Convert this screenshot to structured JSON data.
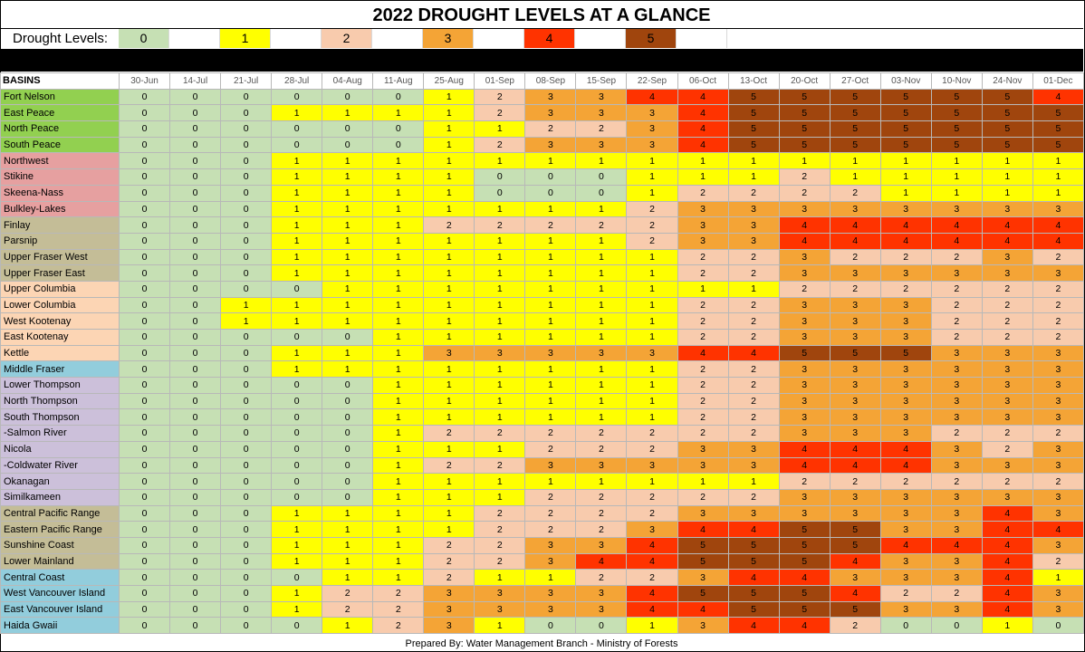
{
  "title": "2022 DROUGHT LEVELS AT A GLANCE",
  "legend": {
    "label": "Drought Levels:",
    "levels": [
      "0",
      "1",
      "2",
      "3",
      "4",
      "5"
    ]
  },
  "colors": {
    "0": "#c6e0b4",
    "1": "#ffff00",
    "2": "#f8cbad",
    "3": "#f4a436",
    "4": "#ff3300",
    "5": "#a0450d",
    "basin_green": "#92d050",
    "basin_pink": "#e6a0a0",
    "basin_olive": "#c4bd97",
    "basin_peach": "#fcd5b4",
    "basin_blue": "#92cddc",
    "basin_lavender": "#ccc0da"
  },
  "table": {
    "basins_header": "BASINS",
    "dates": [
      "30-Jun",
      "14-Jul",
      "21-Jul",
      "28-Jul",
      "04-Aug",
      "11-Aug",
      "25-Aug",
      "01-Sep",
      "08-Sep",
      "15-Sep",
      "22-Sep",
      "06-Oct",
      "13-Oct",
      "20-Oct",
      "27-Oct",
      "03-Nov",
      "10-Nov",
      "24-Nov",
      "01-Dec"
    ],
    "rows": [
      {
        "name": "Fort Nelson",
        "group": "basin_green",
        "values": [
          "0",
          "0",
          "0",
          "0",
          "0",
          "0",
          "1",
          "2",
          "3",
          "3",
          "4",
          "4",
          "5",
          "5",
          "5",
          "5",
          "5",
          "5",
          "4"
        ]
      },
      {
        "name": "East Peace",
        "group": "basin_green",
        "values": [
          "0",
          "0",
          "0",
          "1",
          "1",
          "1",
          "1",
          "2",
          "3",
          "3",
          "3",
          "4",
          "5",
          "5",
          "5",
          "5",
          "5",
          "5",
          "5"
        ]
      },
      {
        "name": "North Peace",
        "group": "basin_green",
        "values": [
          "0",
          "0",
          "0",
          "0",
          "0",
          "0",
          "1",
          "1",
          "2",
          "2",
          "3",
          "4",
          "5",
          "5",
          "5",
          "5",
          "5",
          "5",
          "5"
        ]
      },
      {
        "name": "South Peace",
        "group": "basin_green",
        "values": [
          "0",
          "0",
          "0",
          "0",
          "0",
          "0",
          "1",
          "2",
          "3",
          "3",
          "3",
          "4",
          "5",
          "5",
          "5",
          "5",
          "5",
          "5",
          "5"
        ]
      },
      {
        "name": "Northwest",
        "group": "basin_pink",
        "values": [
          "0",
          "0",
          "0",
          "1",
          "1",
          "1",
          "1",
          "1",
          "1",
          "1",
          "1",
          "1",
          "1",
          "1",
          "1",
          "1",
          "1",
          "1",
          "1"
        ]
      },
      {
        "name": "Stikine",
        "group": "basin_pink",
        "values": [
          "0",
          "0",
          "0",
          "1",
          "1",
          "1",
          "1",
          "0",
          "0",
          "0",
          "1",
          "1",
          "1",
          "2",
          "1",
          "1",
          "1",
          "1",
          "1"
        ]
      },
      {
        "name": "Skeena-Nass",
        "group": "basin_pink",
        "values": [
          "0",
          "0",
          "0",
          "1",
          "1",
          "1",
          "1",
          "0",
          "0",
          "0",
          "1",
          "2",
          "2",
          "2",
          "2",
          "1",
          "1",
          "1",
          "1"
        ]
      },
      {
        "name": "Bulkley-Lakes",
        "group": "basin_pink",
        "values": [
          "0",
          "0",
          "0",
          "1",
          "1",
          "1",
          "1",
          "1",
          "1",
          "1",
          "2",
          "3",
          "3",
          "3",
          "3",
          "3",
          "3",
          "3",
          "3"
        ]
      },
      {
        "name": "Finlay",
        "group": "basin_olive",
        "values": [
          "0",
          "0",
          "0",
          "1",
          "1",
          "1",
          "2",
          "2",
          "2",
          "2",
          "2",
          "3",
          "3",
          "4",
          "4",
          "4",
          "4",
          "4",
          "4"
        ]
      },
      {
        "name": "Parsnip",
        "group": "basin_olive",
        "values": [
          "0",
          "0",
          "0",
          "1",
          "1",
          "1",
          "1",
          "1",
          "1",
          "1",
          "2",
          "3",
          "3",
          "4",
          "4",
          "4",
          "4",
          "4",
          "4"
        ]
      },
      {
        "name": "Upper Fraser West",
        "group": "basin_olive",
        "values": [
          "0",
          "0",
          "0",
          "1",
          "1",
          "1",
          "1",
          "1",
          "1",
          "1",
          "1",
          "2",
          "2",
          "3",
          "2",
          "2",
          "2",
          "3",
          "2"
        ]
      },
      {
        "name": "Upper Fraser East",
        "group": "basin_olive",
        "values": [
          "0",
          "0",
          "0",
          "1",
          "1",
          "1",
          "1",
          "1",
          "1",
          "1",
          "1",
          "2",
          "2",
          "3",
          "3",
          "3",
          "3",
          "3",
          "3"
        ]
      },
      {
        "name": "Upper Columbia",
        "group": "basin_peach",
        "values": [
          "0",
          "0",
          "0",
          "0",
          "1",
          "1",
          "1",
          "1",
          "1",
          "1",
          "1",
          "1",
          "1",
          "2",
          "2",
          "2",
          "2",
          "2",
          "2"
        ]
      },
      {
        "name": "Lower Columbia",
        "group": "basin_peach",
        "values": [
          "0",
          "0",
          "1",
          "1",
          "1",
          "1",
          "1",
          "1",
          "1",
          "1",
          "1",
          "2",
          "2",
          "3",
          "3",
          "3",
          "2",
          "2",
          "2"
        ]
      },
      {
        "name": "West Kootenay",
        "group": "basin_peach",
        "values": [
          "0",
          "0",
          "1",
          "1",
          "1",
          "1",
          "1",
          "1",
          "1",
          "1",
          "1",
          "2",
          "2",
          "3",
          "3",
          "3",
          "2",
          "2",
          "2"
        ]
      },
      {
        "name": "East Kootenay",
        "group": "basin_peach",
        "values": [
          "0",
          "0",
          "0",
          "0",
          "0",
          "1",
          "1",
          "1",
          "1",
          "1",
          "1",
          "2",
          "2",
          "3",
          "3",
          "3",
          "2",
          "2",
          "2"
        ]
      },
      {
        "name": "Kettle",
        "group": "basin_peach",
        "values": [
          "0",
          "0",
          "0",
          "1",
          "1",
          "1",
          "3",
          "3",
          "3",
          "3",
          "3",
          "4",
          "4",
          "5",
          "5",
          "5",
          "3",
          "3",
          "3"
        ]
      },
      {
        "name": "Middle Fraser",
        "group": "basin_blue",
        "values": [
          "0",
          "0",
          "0",
          "1",
          "1",
          "1",
          "1",
          "1",
          "1",
          "1",
          "1",
          "2",
          "2",
          "3",
          "3",
          "3",
          "3",
          "3",
          "3"
        ]
      },
      {
        "name": "Lower Thompson",
        "group": "basin_lavender",
        "values": [
          "0",
          "0",
          "0",
          "0",
          "0",
          "1",
          "1",
          "1",
          "1",
          "1",
          "1",
          "2",
          "2",
          "3",
          "3",
          "3",
          "3",
          "3",
          "3"
        ]
      },
      {
        "name": "North Thompson",
        "group": "basin_lavender",
        "values": [
          "0",
          "0",
          "0",
          "0",
          "0",
          "1",
          "1",
          "1",
          "1",
          "1",
          "1",
          "2",
          "2",
          "3",
          "3",
          "3",
          "3",
          "3",
          "3"
        ]
      },
      {
        "name": "South Thompson",
        "group": "basin_lavender",
        "values": [
          "0",
          "0",
          "0",
          "0",
          "0",
          "1",
          "1",
          "1",
          "1",
          "1",
          "1",
          "2",
          "2",
          "3",
          "3",
          "3",
          "3",
          "3",
          "3"
        ]
      },
      {
        "name": "-Salmon River",
        "group": "basin_lavender",
        "values": [
          "0",
          "0",
          "0",
          "0",
          "0",
          "1",
          "2",
          "2",
          "2",
          "2",
          "2",
          "2",
          "2",
          "3",
          "3",
          "3",
          "2",
          "2",
          "2"
        ]
      },
      {
        "name": "Nicola",
        "group": "basin_lavender",
        "values": [
          "0",
          "0",
          "0",
          "0",
          "0",
          "1",
          "1",
          "1",
          "2",
          "2",
          "2",
          "3",
          "3",
          "4",
          "4",
          "4",
          "3",
          "2",
          "3"
        ]
      },
      {
        "name": "-Coldwater River",
        "group": "basin_lavender",
        "values": [
          "0",
          "0",
          "0",
          "0",
          "0",
          "1",
          "2",
          "2",
          "3",
          "3",
          "3",
          "3",
          "3",
          "4",
          "4",
          "4",
          "3",
          "3",
          "3"
        ]
      },
      {
        "name": "Okanagan",
        "group": "basin_lavender",
        "values": [
          "0",
          "0",
          "0",
          "0",
          "0",
          "1",
          "1",
          "1",
          "1",
          "1",
          "1",
          "1",
          "1",
          "2",
          "2",
          "2",
          "2",
          "2",
          "2"
        ]
      },
      {
        "name": "Similkameen",
        "group": "basin_lavender",
        "values": [
          "0",
          "0",
          "0",
          "0",
          "0",
          "1",
          "1",
          "1",
          "2",
          "2",
          "2",
          "2",
          "2",
          "3",
          "3",
          "3",
          "3",
          "3",
          "3"
        ]
      },
      {
        "name": "Central Pacific Range",
        "group": "basin_olive",
        "values": [
          "0",
          "0",
          "0",
          "1",
          "1",
          "1",
          "1",
          "2",
          "2",
          "2",
          "2",
          "3",
          "3",
          "3",
          "3",
          "3",
          "3",
          "4",
          "3"
        ]
      },
      {
        "name": "Eastern Pacific Range",
        "group": "basin_olive",
        "values": [
          "0",
          "0",
          "0",
          "1",
          "1",
          "1",
          "1",
          "2",
          "2",
          "2",
          "3",
          "4",
          "4",
          "5",
          "5",
          "3",
          "3",
          "4",
          "4"
        ]
      },
      {
        "name": "Sunshine Coast",
        "group": "basin_olive",
        "values": [
          "0",
          "0",
          "0",
          "1",
          "1",
          "1",
          "2",
          "2",
          "3",
          "3",
          "4",
          "5",
          "5",
          "5",
          "5",
          "4",
          "4",
          "4",
          "3"
        ]
      },
      {
        "name": "Lower Mainland",
        "group": "basin_olive",
        "values": [
          "0",
          "0",
          "0",
          "1",
          "1",
          "1",
          "2",
          "2",
          "3",
          "4",
          "4",
          "5",
          "5",
          "5",
          "4",
          "3",
          "3",
          "4",
          "2"
        ]
      },
      {
        "name": "Central Coast",
        "group": "basin_blue",
        "values": [
          "0",
          "0",
          "0",
          "0",
          "1",
          "1",
          "2",
          "1",
          "1",
          "2",
          "2",
          "3",
          "4",
          "4",
          "3",
          "3",
          "3",
          "4",
          "1"
        ]
      },
      {
        "name": "West Vancouver Island",
        "group": "basin_blue",
        "values": [
          "0",
          "0",
          "0",
          "1",
          "2",
          "2",
          "3",
          "3",
          "3",
          "3",
          "4",
          "5",
          "5",
          "5",
          "4",
          "2",
          "2",
          "4",
          "3"
        ]
      },
      {
        "name": "East Vancouver Island",
        "group": "basin_blue",
        "values": [
          "0",
          "0",
          "0",
          "1",
          "2",
          "2",
          "3",
          "3",
          "3",
          "3",
          "4",
          "4",
          "5",
          "5",
          "5",
          "3",
          "3",
          "4",
          "3"
        ]
      },
      {
        "name": "Haida Gwaii",
        "group": "basin_blue",
        "values": [
          "0",
          "0",
          "0",
          "0",
          "1",
          "2",
          "3",
          "1",
          "0",
          "0",
          "1",
          "3",
          "4",
          "4",
          "2",
          "0",
          "0",
          "1",
          "0"
        ]
      }
    ]
  },
  "footer": "Prepared By:  Water Management Branch - Ministry of Forests"
}
